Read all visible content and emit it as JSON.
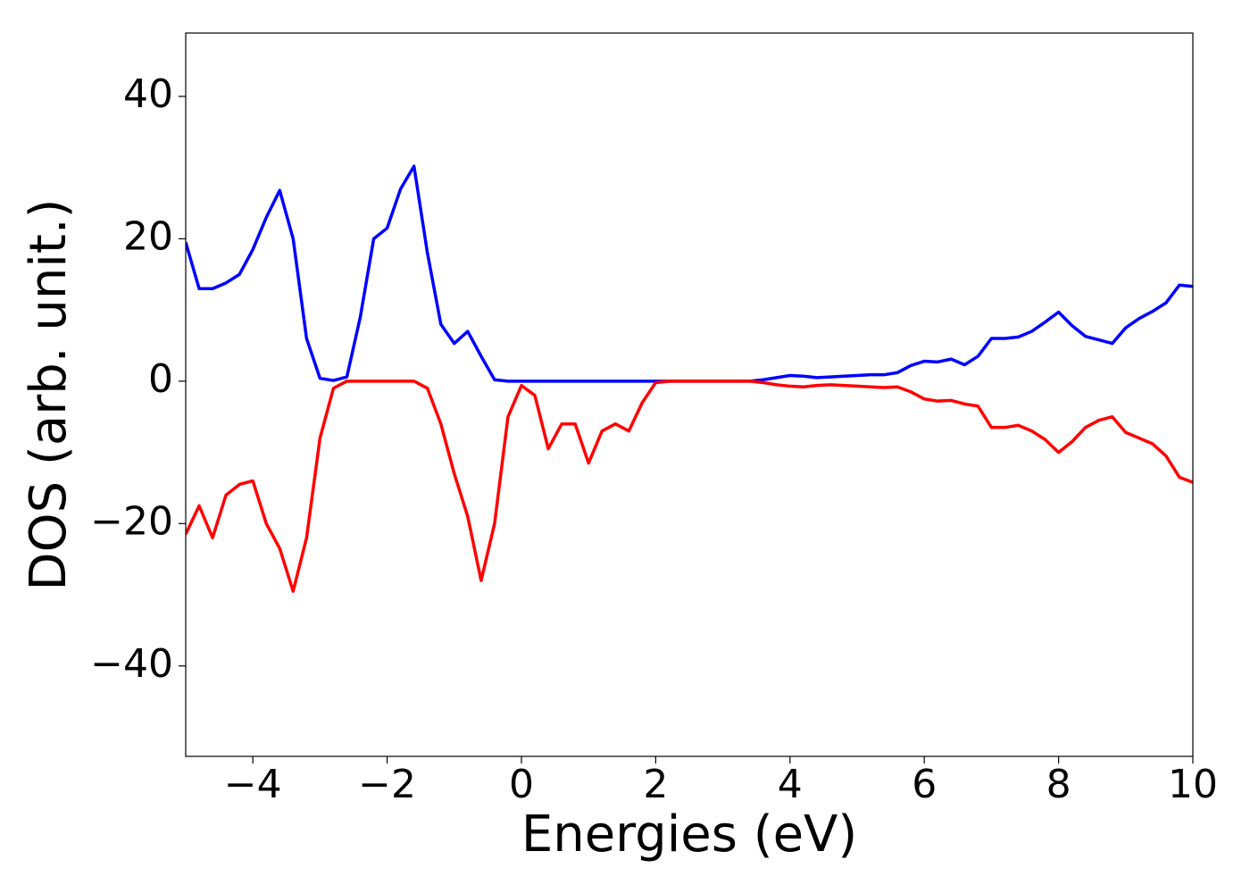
{
  "chart_data": {
    "type": "line",
    "xlabel": "Energies (eV)",
    "ylabel": "DOS (arb. unit.)",
    "x": [
      -5.0,
      -4.8,
      -4.6,
      -4.4,
      -4.2,
      -4.0,
      -3.8,
      -3.6,
      -3.4,
      -3.2,
      -3.0,
      -2.8,
      -2.6,
      -2.4,
      -2.2,
      -2.0,
      -1.8,
      -1.6,
      -1.4,
      -1.2,
      -1.0,
      -0.8,
      -0.6,
      -0.4,
      -0.2,
      0.0,
      0.2,
      0.4,
      0.6,
      0.8,
      1.0,
      1.2,
      1.4,
      1.6,
      1.8,
      2.0,
      2.2,
      2.4,
      2.6,
      2.8,
      3.0,
      3.2,
      3.4,
      3.6,
      3.8,
      4.0,
      4.2,
      4.4,
      4.6,
      4.8,
      5.0,
      5.2,
      5.4,
      5.6,
      5.8,
      6.0,
      6.2,
      6.4,
      6.6,
      6.8,
      7.0,
      7.2,
      7.4,
      7.6,
      7.8,
      8.0,
      8.2,
      8.4,
      8.6,
      8.8,
      9.0,
      9.2,
      9.4,
      9.6,
      9.8,
      10.0
    ],
    "series": [
      {
        "color": "#0000ff",
        "values": [
          19.5,
          13,
          13,
          13.8,
          15,
          18.5,
          23,
          26.8,
          20,
          6,
          0.4,
          0.1,
          0.6,
          9,
          20,
          21.5,
          27,
          30.2,
          18,
          8,
          5.3,
          7,
          3.5,
          0.2,
          0,
          0,
          0,
          0,
          0,
          0,
          0,
          0,
          0,
          0,
          0,
          0,
          0,
          0,
          0,
          0,
          0,
          0,
          0,
          0.2,
          0.5,
          0.8,
          0.7,
          0.5,
          0.6,
          0.7,
          0.8,
          0.9,
          0.9,
          1.2,
          2.2,
          2.8,
          2.7,
          3.1,
          2.3,
          3.5,
          6,
          6,
          6.2,
          7,
          8.3,
          9.7,
          7.8,
          6.3,
          5.8,
          5.3,
          7.5,
          8.8,
          9.8,
          11,
          13.5,
          13.3
        ]
      },
      {
        "color": "#ff0000",
        "values": [
          -21.5,
          -17.5,
          -22,
          -16,
          -14.5,
          -14,
          -20,
          -23.5,
          -29.5,
          -22,
          -8,
          -1,
          0,
          0,
          0,
          0,
          0,
          0,
          -1,
          -6,
          -13,
          -19,
          -28,
          -20,
          -5,
          -0.6,
          -2,
          -9.5,
          -6,
          -6,
          -11.5,
          -7,
          -6,
          -7,
          -3,
          -0.2,
          0,
          0,
          0,
          0,
          0,
          0,
          0,
          -0.2,
          -0.5,
          -0.7,
          -0.8,
          -0.6,
          -0.5,
          -0.6,
          -0.7,
          -0.8,
          -0.9,
          -0.8,
          -1.5,
          -2.5,
          -2.8,
          -2.7,
          -3.2,
          -3.5,
          -6.5,
          -6.5,
          -6.2,
          -7,
          -8.2,
          -10,
          -8.5,
          -6.5,
          -5.5,
          -5,
          -7.2,
          -8,
          -8.8,
          -10.5,
          -13.5,
          -14.2
        ]
      }
    ],
    "xlim": [
      -5,
      10
    ],
    "xticks": [
      {
        "value": -4,
        "label": "−4"
      },
      {
        "value": -2,
        "label": "−2"
      },
      0,
      2,
      4,
      6,
      8,
      10
    ],
    "ylim": [
      -52.7,
      48.9
    ],
    "yticks": [
      {
        "value": -40,
        "label": "−40"
      },
      {
        "value": -20,
        "label": "−20"
      },
      0,
      20,
      40
    ]
  }
}
